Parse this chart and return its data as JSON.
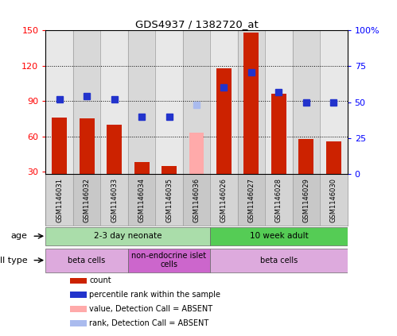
{
  "title": "GDS4937 / 1382720_at",
  "samples": [
    "GSM1146031",
    "GSM1146032",
    "GSM1146033",
    "GSM1146034",
    "GSM1146035",
    "GSM1146036",
    "GSM1146026",
    "GSM1146027",
    "GSM1146028",
    "GSM1146029",
    "GSM1146030"
  ],
  "bar_values": [
    76,
    75,
    70,
    38,
    35,
    null,
    118,
    148,
    96,
    58,
    56
  ],
  "bar_absent": [
    null,
    null,
    null,
    null,
    null,
    63,
    null,
    null,
    null,
    null,
    null
  ],
  "rank_values": [
    52,
    54,
    52,
    40,
    40,
    null,
    60,
    71,
    57,
    50,
    50
  ],
  "rank_absent": [
    null,
    null,
    null,
    null,
    null,
    48,
    null,
    null,
    null,
    null,
    null
  ],
  "bar_color": "#cc2200",
  "bar_absent_color": "#ffaaaa",
  "rank_color": "#2233cc",
  "rank_absent_color": "#aabbee",
  "ylim_left": [
    28,
    150
  ],
  "ylim_right": [
    0,
    100
  ],
  "yticks_left": [
    30,
    60,
    90,
    120,
    150
  ],
  "yticks_right": [
    0,
    25,
    50,
    75,
    100
  ],
  "yticklabels_right": [
    "0",
    "25",
    "50",
    "75",
    "100%"
  ],
  "age_groups": [
    {
      "label": "2-3 day neonate",
      "start": 0,
      "end": 6,
      "color": "#aaddaa"
    },
    {
      "label": "10 week adult",
      "start": 6,
      "end": 11,
      "color": "#55cc55"
    }
  ],
  "cell_groups": [
    {
      "label": "beta cells",
      "start": 0,
      "end": 3,
      "color": "#ddaadd"
    },
    {
      "label": "non-endocrine islet\ncells",
      "start": 3,
      "end": 6,
      "color": "#cc66cc"
    },
    {
      "label": "beta cells",
      "start": 6,
      "end": 11,
      "color": "#ddaadd"
    }
  ],
  "legend_items": [
    {
      "color": "#cc2200",
      "label": "count"
    },
    {
      "color": "#2233cc",
      "label": "percentile rank within the sample"
    },
    {
      "color": "#ffaaaa",
      "label": "value, Detection Call = ABSENT"
    },
    {
      "color": "#aabbee",
      "label": "rank, Detection Call = ABSENT"
    }
  ],
  "bar_width": 0.55,
  "rank_marker_size": 6,
  "background_color": "#ffffff",
  "label_row1": "age",
  "label_row2": "cell type",
  "grid_yticks": [
    60,
    90,
    120
  ]
}
